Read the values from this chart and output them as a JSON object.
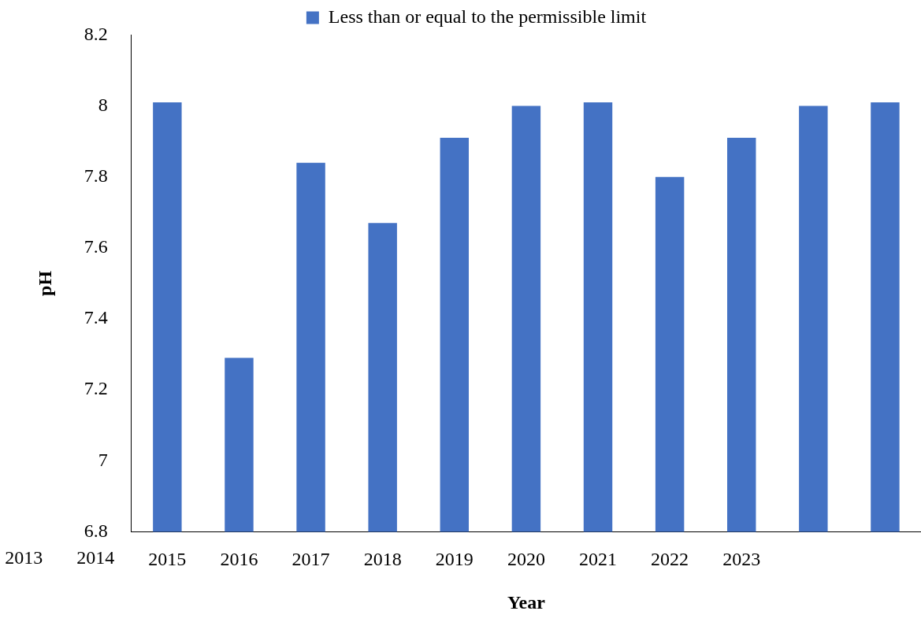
{
  "chart_data": {
    "type": "bar",
    "xlabel": "Year",
    "ylabel": "pH",
    "categories": [
      "2015",
      "2016",
      "2017",
      "2018",
      "2019",
      "2020",
      "2021",
      "2022",
      "2023",
      null,
      null
    ],
    "series": [
      {
        "name": "Less than or equal to the permissible limit",
        "color": "#4472c4",
        "values": [
          8.01,
          7.29,
          7.84,
          7.67,
          7.91,
          8.0,
          8.01,
          7.8,
          7.91,
          8.0,
          8.01
        ]
      }
    ],
    "ylim": [
      6.8,
      8.2
    ],
    "yticks": [
      6.8,
      7,
      7.2,
      7.4,
      7.6,
      7.8,
      8,
      8.2
    ],
    "grid": false,
    "legend": "top",
    "annotations": [
      "2013",
      "2014"
    ]
  }
}
